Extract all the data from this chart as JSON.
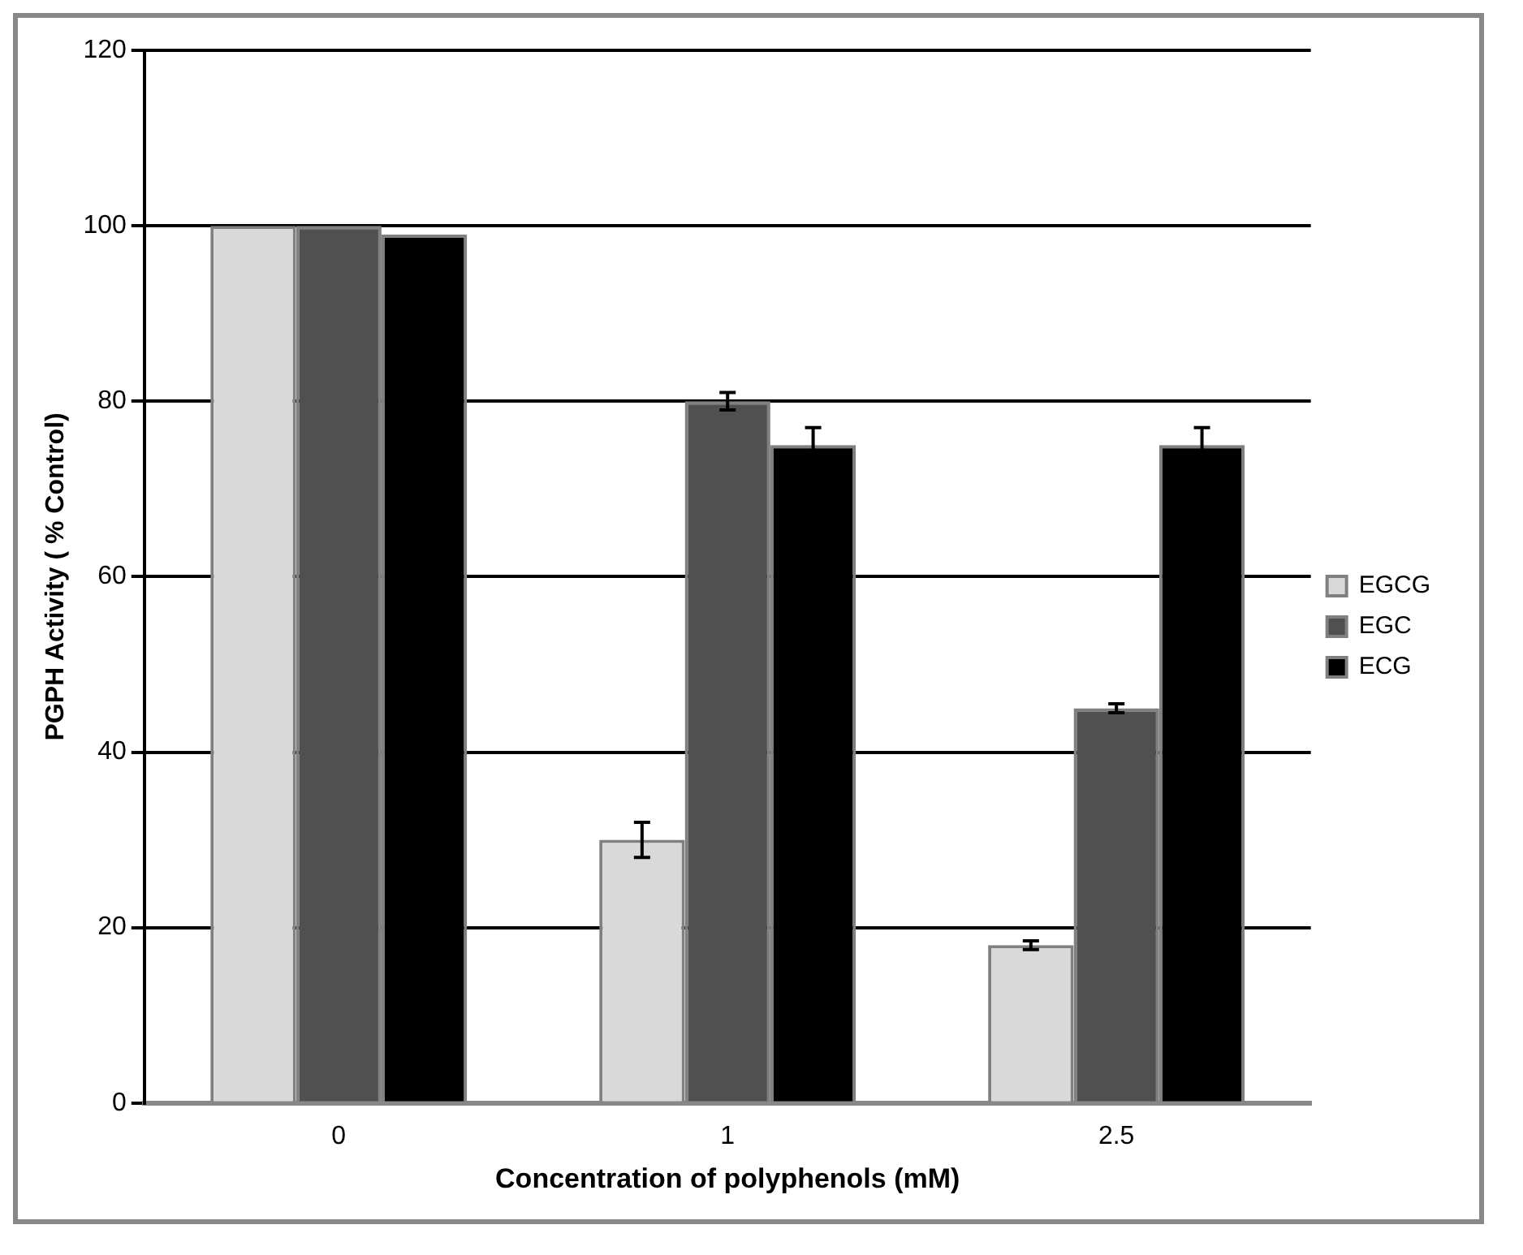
{
  "chart_data": {
    "type": "bar",
    "xlabel": "Concentration of polyphenols (mM)",
    "ylabel": "PGPH Activity ( % Control)",
    "categories": [
      "0",
      "1",
      "2.5"
    ],
    "series": [
      {
        "name": "EGCG",
        "color": "#d9d9d9",
        "values": [
          100,
          30,
          18
        ],
        "errors": [
          null,
          2,
          0.5
        ]
      },
      {
        "name": "EGC",
        "color": "#505050",
        "values": [
          100,
          80,
          45
        ],
        "errors": [
          null,
          1,
          0.5
        ]
      },
      {
        "name": "ECG",
        "color": "#000000",
        "values": [
          99,
          75,
          75
        ],
        "errors": [
          null,
          2,
          2
        ]
      }
    ],
    "ylim": [
      0,
      120
    ],
    "yticks": [
      0,
      20,
      40,
      60,
      80,
      100,
      120
    ],
    "grid": "y",
    "legend": "right"
  }
}
